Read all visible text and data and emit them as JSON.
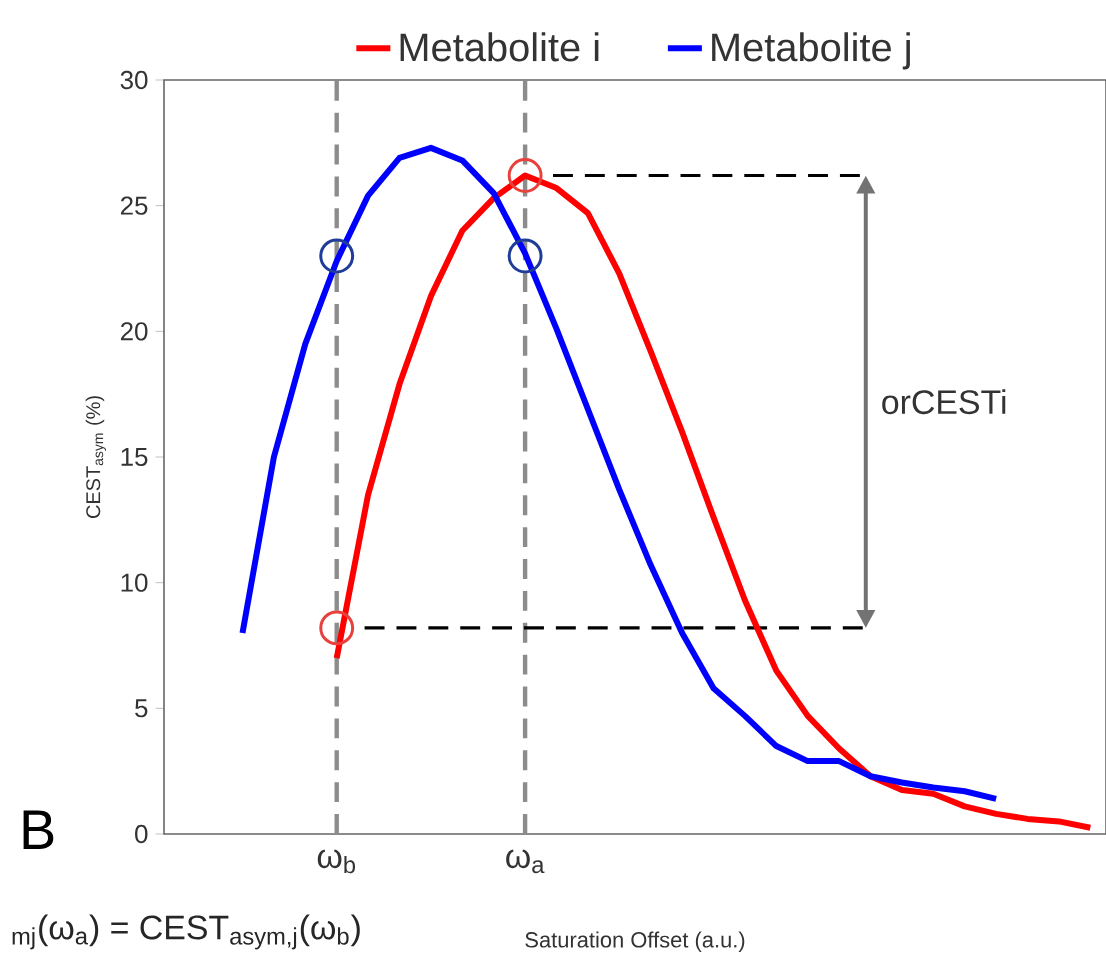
{
  "chart_data": {
    "type": "line",
    "xlabel": "Saturation Offset (a.u.)",
    "ylabel": "CEST$_{asym}$ (%)",
    "categories": [
      null,
      null,
      null,
      null,
      null,
      "ω$_{b}$",
      null,
      null,
      null,
      null,
      null,
      "ω$_{a}$",
      null,
      null,
      null,
      null,
      null,
      null,
      null,
      null,
      null,
      null,
      null,
      null,
      null,
      null,
      null,
      null,
      null,
      null
    ],
    "ylim": [
      0,
      30
    ],
    "yticks": [
      0,
      5,
      10,
      15,
      20,
      25,
      30
    ],
    "legend": "top",
    "line_style": "solid",
    "marker": "none",
    "series": [
      {
        "name": "Metabolite i",
        "color": "#ff0000",
        "values": [
          null,
          null,
          null,
          null,
          null,
          7.0,
          13.5,
          17.9,
          21.4,
          24.0,
          25.3,
          26.2,
          25.7,
          24.7,
          22.3,
          19.2,
          16.0,
          12.6,
          9.3,
          6.5,
          4.7,
          3.4,
          2.3,
          1.75,
          1.6,
          1.1,
          0.8,
          0.6,
          0.5,
          0.25
        ]
      },
      {
        "name": "Metabolite j",
        "color": "#0000ff",
        "values": [
          null,
          null,
          8.0,
          15.0,
          19.5,
          22.8,
          25.4,
          26.9,
          27.3,
          26.8,
          25.5,
          23.1,
          20.1,
          16.9,
          13.7,
          10.7,
          8.0,
          5.8,
          4.7,
          3.5,
          2.9,
          2.9,
          2.3,
          2.05,
          1.85,
          1.7,
          1.4,
          null,
          null,
          null
        ]
      },
      {
        "type": "scatter",
        "marker": "circle",
        "color": "#e8413c",
        "values": [
          null,
          null,
          null,
          null,
          null,
          8.2,
          null,
          null,
          null,
          null,
          null,
          26.2,
          null,
          null,
          null,
          null,
          null,
          null,
          null,
          null,
          null,
          null,
          null,
          null,
          null,
          null,
          null,
          null,
          null,
          null
        ]
      },
      {
        "type": "scatter",
        "marker": "circle",
        "color": "#1f3c99",
        "values": [
          null,
          null,
          null,
          null,
          null,
          23,
          null,
          null,
          null,
          null,
          null,
          23,
          null,
          null,
          null,
          null,
          null,
          null,
          null,
          null,
          null,
          null,
          null,
          null,
          null,
          null,
          null,
          null,
          null,
          null
        ]
      }
    ],
    "ref_lines": [
      {
        "axis": "x",
        "value": "ω$_{b}$",
        "color": "#8c8c8c",
        "line_style": "dashed"
      },
      {
        "axis": "x",
        "value": "ω$_{a}$",
        "color": "#8c8c8c",
        "line_style": "dashed"
      },
      {
        "axis": "y",
        "value": 26.2,
        "color": "#000000",
        "line_style": "dashed"
      },
      {
        "axis": "y",
        "value": 8.2,
        "color": "#000000",
        "line_style": "dashed"
      }
    ],
    "annotations": [
      "orCESTi",
      "B",
      "$_{mj}$(ω$_{a}$) = CEST$_{asym,j}$(ω$_{b}$)"
    ]
  }
}
